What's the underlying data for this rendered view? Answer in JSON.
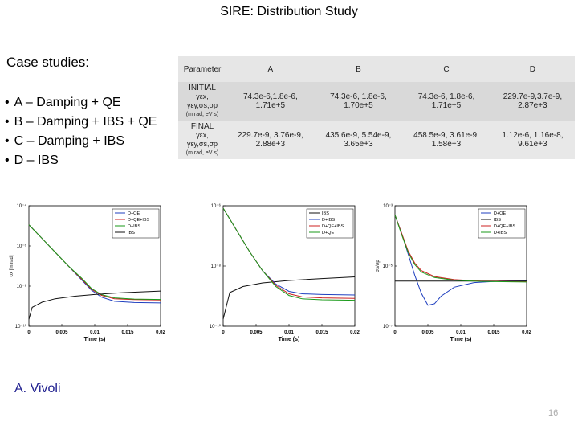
{
  "slide": {
    "title": "SIRE: Distribution Study",
    "author": "A. Vivoli",
    "page_number": "16"
  },
  "cases": {
    "heading": "Case studies:",
    "items": [
      "A – Damping + QE",
      "B – Damping + IBS + QE",
      "C – Damping + IBS",
      "D – IBS"
    ]
  },
  "table": {
    "header": [
      "Parameter",
      "A",
      "B",
      "C",
      "D"
    ],
    "rows": [
      {
        "label": "INITIAL",
        "symbols": "γεx, γεy,σs,σp",
        "unit": "(m rad, eV s)",
        "values": [
          "74.3e-6,1.8e-6, 1.71e+5",
          "74.3e-6, 1.8e-6, 1.70e+5",
          "74.3e-6, 1.8e-6, 1.71e+5",
          "229.7e-9,3.7e-9, 2.87e+3"
        ]
      },
      {
        "label": "FINAL",
        "symbols": "γεx, γεy,σs,σp",
        "unit": "(m rad, eV s)",
        "values": [
          "229.7e-9, 3.76e-9, 2.88e+3",
          "435.6e-9, 5.54e-9, 3.65e+3",
          "458.5e-9, 3.61e-9, 1.58e+3",
          "1.12e-6, 1.16e-8, 9.61e+3"
        ]
      }
    ]
  },
  "chart_data": [
    {
      "type": "line",
      "xlabel": "Time (s)",
      "ylabel": "σx [m rad]",
      "xlim": [
        0,
        0.02
      ],
      "xticks": [
        "0",
        "0.005",
        "0.01",
        "0.015",
        "0.02"
      ],
      "yticks": [
        "10⁻⁴",
        "10⁻⁶",
        "10⁻⁸",
        "10⁻¹⁰"
      ],
      "ylog": [
        -11,
        -4
      ],
      "legend": [
        "D+QE",
        "D+QE+IBS",
        "D+IBS",
        "IBS"
      ],
      "series": [
        {
          "name": "D+QE",
          "color": "#1f3fbf",
          "x": [
            0,
            0.002,
            0.004,
            0.006,
            0.008,
            0.0095,
            0.011,
            0.013,
            0.016,
            0.02
          ],
          "y": [
            -5.1,
            -5.9,
            -6.7,
            -7.5,
            -8.3,
            -8.9,
            -9.3,
            -9.55,
            -9.62,
            -9.64
          ]
        },
        {
          "name": "D+QE+IBS",
          "color": "#cc2222",
          "x": [
            0,
            0.002,
            0.004,
            0.006,
            0.008,
            0.0095,
            0.011,
            0.013,
            0.016,
            0.02
          ],
          "y": [
            -5.1,
            -5.9,
            -6.7,
            -7.5,
            -8.25,
            -8.85,
            -9.2,
            -9.4,
            -9.45,
            -9.47
          ]
        },
        {
          "name": "D+IBS",
          "color": "#1a9a1a",
          "x": [
            0,
            0.002,
            0.004,
            0.006,
            0.008,
            0.0095,
            0.011,
            0.013,
            0.016,
            0.02
          ],
          "y": [
            -5.1,
            -5.9,
            -6.7,
            -7.5,
            -8.2,
            -8.8,
            -9.15,
            -9.35,
            -9.42,
            -9.44
          ]
        },
        {
          "name": "IBS",
          "color": "#111111",
          "x": [
            0,
            0.0005,
            0.002,
            0.004,
            0.007,
            0.01,
            0.014,
            0.02
          ],
          "y": [
            -10.6,
            -9.9,
            -9.6,
            -9.4,
            -9.25,
            -9.15,
            -9.05,
            -8.95
          ]
        }
      ]
    },
    {
      "type": "line",
      "xlabel": "Time (s)",
      "ylabel": "",
      "xlim": [
        0,
        0.02
      ],
      "xticks": [
        "0",
        "0.005",
        "0.01",
        "0.015",
        "0.02"
      ],
      "yticks": [
        "10⁻⁶",
        "10⁻⁸",
        "10⁻¹⁰"
      ],
      "ylog": [
        -11,
        -6
      ],
      "legend": [
        "IBS",
        "D+IBS",
        "D+QE+IBS",
        "D+QE"
      ],
      "series": [
        {
          "name": "IBS",
          "color": "#111111",
          "x": [
            0,
            0.001,
            0.003,
            0.006,
            0.01,
            0.015,
            0.02
          ],
          "y": [
            -10.7,
            -9.6,
            -9.35,
            -9.2,
            -9.1,
            -9.02,
            -8.95
          ]
        },
        {
          "name": "D+IBS",
          "color": "#1f3fbf",
          "x": [
            0,
            0.002,
            0.004,
            0.006,
            0.008,
            0.01,
            0.012,
            0.015,
            0.02
          ],
          "y": [
            -6.1,
            -7.0,
            -7.9,
            -8.7,
            -9.25,
            -9.55,
            -9.65,
            -9.68,
            -9.7
          ]
        },
        {
          "name": "D+QE+IBS",
          "color": "#cc2222",
          "x": [
            0,
            0.002,
            0.004,
            0.006,
            0.008,
            0.01,
            0.012,
            0.015,
            0.02
          ],
          "y": [
            -6.1,
            -7.0,
            -7.9,
            -8.7,
            -9.3,
            -9.65,
            -9.78,
            -9.82,
            -9.84
          ]
        },
        {
          "name": "D+QE",
          "color": "#1a9a1a",
          "x": [
            0,
            0.002,
            0.004,
            0.006,
            0.008,
            0.01,
            0.012,
            0.015,
            0.02
          ],
          "y": [
            -6.1,
            -7.0,
            -7.9,
            -8.7,
            -9.35,
            -9.72,
            -9.86,
            -9.9,
            -9.92
          ]
        }
      ]
    },
    {
      "type": "line",
      "xlabel": "Time (s)",
      "ylabel": "σs/σp",
      "xlim": [
        0,
        0.02
      ],
      "xticks": [
        "0",
        "0.005",
        "0.01",
        "0.015",
        "0.02"
      ],
      "yticks": [
        "10⁻³",
        "10⁻⁵",
        "10⁻⁷"
      ],
      "ylog": [
        -7,
        -3
      ],
      "legend": [
        "D+QE",
        "IBS",
        "D+QE+IBS",
        "D+IBS"
      ],
      "series": [
        {
          "name": "D+QE",
          "color": "#1f3fbf",
          "x": [
            0,
            0.001,
            0.002,
            0.003,
            0.004,
            0.005,
            0.006,
            0.007,
            0.009,
            0.012,
            0.016,
            0.02
          ],
          "y": [
            -3.3,
            -3.9,
            -4.6,
            -5.3,
            -5.9,
            -6.3,
            -6.25,
            -6.0,
            -5.7,
            -5.55,
            -5.5,
            -5.48
          ]
        },
        {
          "name": "IBS",
          "color": "#111111",
          "x": [
            0,
            0.005,
            0.01,
            0.015,
            0.02
          ],
          "y": [
            -5.5,
            -5.5,
            -5.5,
            -5.5,
            -5.5
          ]
        },
        {
          "name": "D+QE+IBS",
          "color": "#cc2222",
          "x": [
            0,
            0.001,
            0.002,
            0.003,
            0.004,
            0.006,
            0.009,
            0.013,
            0.02
          ],
          "y": [
            -3.3,
            -3.9,
            -4.5,
            -4.9,
            -5.15,
            -5.35,
            -5.45,
            -5.5,
            -5.52
          ]
        },
        {
          "name": "D+IBS",
          "color": "#1a9a1a",
          "x": [
            0,
            0.001,
            0.002,
            0.003,
            0.004,
            0.006,
            0.009,
            0.013,
            0.02
          ],
          "y": [
            -3.3,
            -3.95,
            -4.55,
            -4.95,
            -5.2,
            -5.38,
            -5.47,
            -5.51,
            -5.53
          ]
        }
      ]
    }
  ]
}
